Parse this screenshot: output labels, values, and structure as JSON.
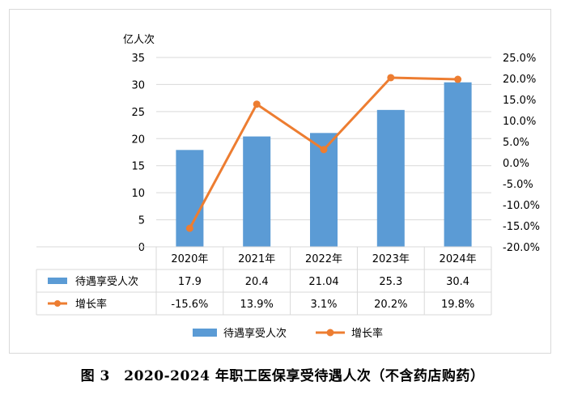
{
  "caption": "图 3　2020-2024 年职工医保享受待遇人次（不含药店购药）",
  "chart_data": {
    "type": "bar+line",
    "y_unit_label": "亿人次",
    "categories": [
      "2020年",
      "2021年",
      "2022年",
      "2023年",
      "2024年"
    ],
    "left_axis": {
      "min": 0,
      "max": 35,
      "step": 5,
      "ticks": [
        "0",
        "5",
        "10",
        "15",
        "20",
        "25",
        "30",
        "35"
      ]
    },
    "right_axis": {
      "min": -0.2,
      "max": 0.25,
      "step": 0.05,
      "ticks": [
        "-20.0%",
        "-15.0%",
        "-10.0%",
        "-5.0%",
        "0.0%",
        "5.0%",
        "10.0%",
        "15.0%",
        "20.0%",
        "25.0%"
      ]
    },
    "series": [
      {
        "name": "待遇享受人次",
        "type": "bar",
        "axis": "left",
        "color": "#5b9bd5",
        "values": [
          17.9,
          20.4,
          21.04,
          25.3,
          30.4
        ],
        "labels": [
          "17.9",
          "20.4",
          "21.04",
          "25.3",
          "30.4"
        ]
      },
      {
        "name": "增长率",
        "type": "line",
        "axis": "right",
        "color": "#ed7d31",
        "values": [
          -0.156,
          0.139,
          0.031,
          0.202,
          0.198
        ],
        "labels": [
          "-15.6%",
          "13.9%",
          "3.1%",
          "20.2%",
          "19.8%"
        ]
      }
    ],
    "grid": true,
    "legend_position": "bottom",
    "data_table": true
  }
}
